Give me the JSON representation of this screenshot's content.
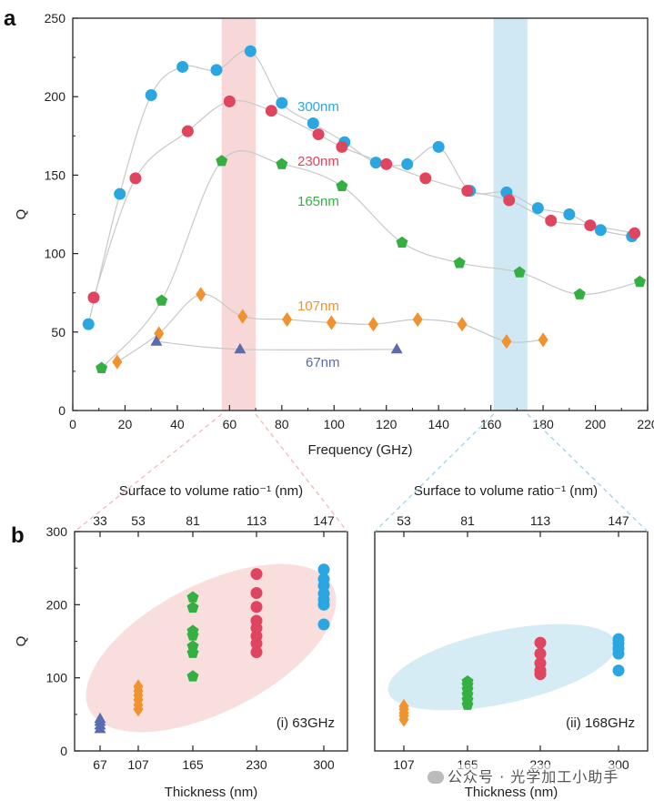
{
  "watermark": "公众号 · 光学加工小助手",
  "colors": {
    "300nm": "#2aa6e0",
    "230nm": "#e04560",
    "165nm": "#34b043",
    "107nm": "#f0922e",
    "67nm": "#5a6bb0",
    "band_pink": "#f6d3d3",
    "band_blue": "#cbe6f3",
    "ellipse_pink": "#f9dede",
    "ellipse_blue": "#d6ecf4",
    "curve": "#c8c8c8"
  },
  "chart_data": [
    {
      "panel": "a",
      "type": "scatter",
      "xlabel": "Frequency (GHz)",
      "ylabel": "Q",
      "xlim": [
        0,
        220
      ],
      "ylim": [
        0,
        250
      ],
      "xticks": [
        0,
        20,
        40,
        60,
        80,
        100,
        120,
        140,
        160,
        180,
        200,
        220
      ],
      "yticks": [
        0,
        50,
        100,
        150,
        200,
        250
      ],
      "bands": [
        {
          "name": "pink-band",
          "x0": 57,
          "x1": 70,
          "color": "band_pink"
        },
        {
          "name": "blue-band",
          "x0": 161,
          "x1": 174,
          "color": "band_blue"
        }
      ],
      "series": [
        {
          "name": "300nm",
          "marker": "circle",
          "label": "300nm",
          "x": [
            6,
            18,
            30,
            42,
            55,
            68,
            80,
            92,
            104,
            116,
            128,
            140,
            152,
            166,
            178,
            190,
            202,
            214
          ],
          "y": [
            55,
            138,
            201,
            219,
            217,
            229,
            196,
            183,
            171,
            158,
            157,
            168,
            140,
            139,
            129,
            125,
            115,
            111
          ]
        },
        {
          "name": "230nm",
          "marker": "circle",
          "label": "230nm",
          "x": [
            8,
            24,
            44,
            60,
            76,
            94,
            103,
            120,
            135,
            151,
            167,
            183,
            198,
            215
          ],
          "y": [
            72,
            148,
            178,
            197,
            191,
            176,
            168,
            157,
            148,
            140,
            134,
            121,
            118,
            113
          ]
        },
        {
          "name": "165nm",
          "marker": "pentagon",
          "label": "165nm",
          "x": [
            11,
            34,
            57,
            80,
            103,
            126,
            148,
            171,
            194,
            217
          ],
          "y": [
            27,
            70,
            159,
            157,
            143,
            107,
            94,
            88,
            74,
            82
          ]
        },
        {
          "name": "107nm",
          "marker": "diamond",
          "label": "107nm",
          "x": [
            17,
            33,
            49,
            65,
            82,
            99,
            115,
            132,
            149,
            166,
            180
          ],
          "y": [
            31,
            49,
            74,
            60,
            58,
            56,
            55,
            58,
            55,
            44,
            45
          ]
        },
        {
          "name": "67nm",
          "marker": "triangle",
          "label": "67nm",
          "x": [
            32,
            64,
            124
          ],
          "y": [
            44,
            39,
            39
          ]
        }
      ],
      "curves": [
        {
          "name": "300nm-curve",
          "x": [
            6,
            18,
            30,
            42,
            55,
            68,
            80,
            92,
            104,
            116,
            128,
            140,
            152,
            166,
            178,
            190,
            202,
            214
          ],
          "y": [
            55,
            138,
            201,
            219,
            217,
            229,
            196,
            183,
            171,
            158,
            157,
            168,
            140,
            139,
            129,
            125,
            115,
            111
          ]
        },
        {
          "name": "230nm-curve",
          "x": [
            8,
            24,
            44,
            60,
            76,
            94,
            103,
            120,
            135,
            151,
            167,
            183,
            198,
            215
          ],
          "y": [
            72,
            148,
            178,
            197,
            191,
            176,
            168,
            157,
            148,
            140,
            134,
            121,
            118,
            113
          ]
        },
        {
          "name": "165nm-curve",
          "x": [
            11,
            34,
            57,
            80,
            103,
            126,
            148,
            171,
            194,
            217
          ],
          "y": [
            27,
            70,
            159,
            157,
            143,
            107,
            94,
            88,
            74,
            82
          ]
        },
        {
          "name": "107nm-curve",
          "x": [
            17,
            33,
            49,
            65,
            82,
            99,
            115,
            132,
            149,
            166,
            180
          ],
          "y": [
            31,
            49,
            74,
            60,
            58,
            56,
            55,
            58,
            55,
            44,
            45
          ]
        },
        {
          "name": "67nm-curve",
          "x": [
            32,
            64,
            124
          ],
          "y": [
            44,
            39,
            39
          ]
        }
      ]
    },
    {
      "panel": "b(i)",
      "type": "scatter",
      "annotation": "(i) 63GHz",
      "xlabel": "Thickness (nm)",
      "ylabel": "Q",
      "toplabel": "Surface to volume ratio⁻¹ (nm)",
      "xticks": [
        "67",
        "107",
        "165",
        "230",
        "300"
      ],
      "topticks": [
        "33",
        "53",
        "81",
        "113",
        "147"
      ],
      "yticks": [
        0,
        100,
        200,
        300
      ],
      "ylim": [
        0,
        300
      ],
      "series": [
        {
          "name": "67nm",
          "marker": "triangle",
          "x": "67",
          "values": [
            30,
            35,
            40,
            44
          ]
        },
        {
          "name": "107nm",
          "marker": "diamond",
          "x": "107",
          "values": [
            57,
            63,
            70,
            76,
            82,
            88
          ]
        },
        {
          "name": "165nm",
          "marker": "pentagon",
          "x": "165",
          "values": [
            102,
            134,
            143,
            158,
            164,
            196,
            210
          ]
        },
        {
          "name": "230nm",
          "marker": "circle",
          "x": "230",
          "values": [
            135,
            147,
            157,
            168,
            178,
            197,
            216,
            242
          ]
        },
        {
          "name": "300nm",
          "marker": "circle",
          "x": "300",
          "values": [
            173,
            200,
            207,
            215,
            226,
            235,
            248
          ]
        }
      ]
    },
    {
      "panel": "b(ii)",
      "type": "scatter",
      "annotation": "(ii) 168GHz",
      "xlabel": "Thickness (nm)",
      "toplabel": "Surface to volume ratio⁻¹ (nm)",
      "xticks": [
        "107",
        "165",
        "230",
        "300"
      ],
      "topticks": [
        "53",
        "81",
        "113",
        "147"
      ],
      "ylim": [
        0,
        300
      ],
      "series": [
        {
          "name": "107nm",
          "marker": "diamond",
          "x": "107",
          "values": [
            43,
            48,
            52,
            57,
            61
          ]
        },
        {
          "name": "165nm",
          "marker": "pentagon",
          "x": "165",
          "values": [
            63,
            70,
            77,
            84,
            90,
            95
          ]
        },
        {
          "name": "230nm",
          "marker": "circle",
          "x": "230",
          "values": [
            105,
            110,
            120,
            133,
            148
          ]
        },
        {
          "name": "300nm",
          "marker": "circle",
          "x": "300",
          "values": [
            110,
            133,
            140,
            147,
            153
          ]
        }
      ]
    }
  ]
}
